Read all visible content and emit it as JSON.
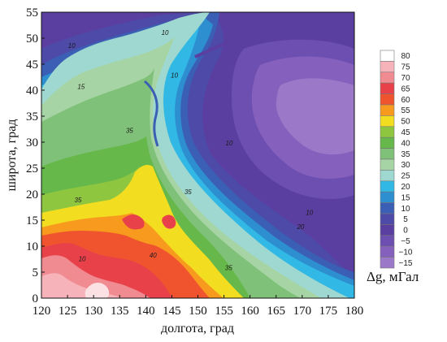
{
  "chart_data": {
    "type": "heatmap",
    "subtype": "filled-contour",
    "xlabel": "долгота, град",
    "ylabel": "широта, град",
    "xlim": [
      120,
      180
    ],
    "ylim": [
      0,
      55
    ],
    "x_ticks": [
      "120",
      "125",
      "130",
      "135",
      "140",
      "145",
      "150",
      "155",
      "160",
      "165",
      "170",
      "175",
      "180"
    ],
    "y_ticks": [
      "0",
      "5",
      "10",
      "15",
      "20",
      "25",
      "30",
      "35",
      "40",
      "45",
      "50",
      "55"
    ],
    "colorbar": {
      "label": "Δg, мГал",
      "levels": [
        "80",
        "75",
        "70",
        "65",
        "60",
        "55",
        "50",
        "45",
        "40",
        "35",
        "30",
        "25",
        "20",
        "15",
        "10",
        "5",
        "0",
        "−5",
        "−10",
        "−15"
      ],
      "colors": [
        "#ffffff",
        "#f7b3ba",
        "#f08b92",
        "#e8414a",
        "#f0542f",
        "#f79a1e",
        "#f3dd20",
        "#8fc640",
        "#67b84a",
        "#7fc178",
        "#a6d4a4",
        "#9fd8d0",
        "#31b8e4",
        "#2d8ed0",
        "#3a5fb5",
        "#4d4aa8",
        "#5b3fa0",
        "#6c4fb0",
        "#8560bd",
        "#9b78c8"
      ],
      "grid": false
    },
    "contour_labels": [
      {
        "text": "10",
        "lon": 125.8,
        "lat": 48.1
      },
      {
        "text": "10",
        "lon": 143.7,
        "lat": 50.6
      },
      {
        "text": "10",
        "lon": 145.5,
        "lat": 42.4
      },
      {
        "text": "15",
        "lon": 127.6,
        "lat": 40.2
      },
      {
        "text": "35",
        "lon": 136.9,
        "lat": 31.8
      },
      {
        "text": "35",
        "lon": 127.0,
        "lat": 18.4
      },
      {
        "text": "35",
        "lon": 148.1,
        "lat": 20.0
      },
      {
        "text": "35",
        "lon": 155.9,
        "lat": 5.4
      },
      {
        "text": "10",
        "lon": 156.0,
        "lat": 29.4
      },
      {
        "text": "10",
        "lon": 171.4,
        "lat": 16.0
      },
      {
        "text": "20",
        "lon": 169.7,
        "lat": 13.3
      },
      {
        "text": "40",
        "lon": 141.4,
        "lat": 7.8
      },
      {
        "text": "10",
        "lon": 127.8,
        "lat": 7.1
      }
    ]
  },
  "colors": {
    "axis": "#111111"
  }
}
